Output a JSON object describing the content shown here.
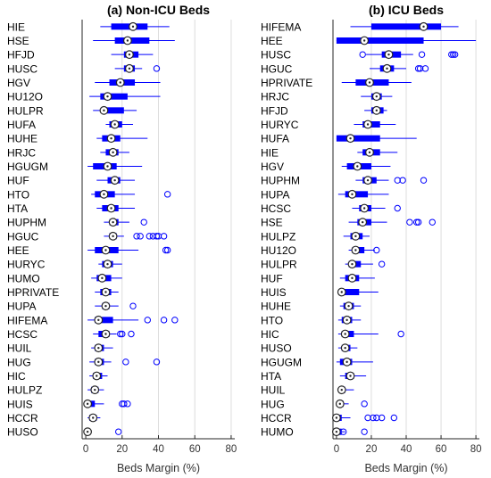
{
  "colors": {
    "box": "#0000ff",
    "grid": "#dddddd",
    "axis": "#262626",
    "text": "#000000"
  },
  "chart_data": [
    {
      "type": "box",
      "title": "(a) Non-ICU Beds",
      "xlabel": "Beds Margin (%)",
      "xlim": [
        -2,
        82
      ],
      "xticks": [
        0,
        20,
        40,
        60,
        80
      ],
      "grid": "vertical",
      "categories": [
        "HIE",
        "HSE",
        "HFJD",
        "HUSC",
        "HGV",
        "HU12O",
        "HULPR",
        "HUFA",
        "HUHE",
        "HRJC",
        "HGUGM",
        "HUF",
        "HTO",
        "HTA",
        "HUPHM",
        "HGUC",
        "HEE",
        "HURYC",
        "HUMO",
        "HPRIVATE",
        "HUPA",
        "HIFEMA",
        "HCSC",
        "HUIL",
        "HUG",
        "HIC",
        "HULPZ",
        "HUIS",
        "HCCR",
        "HUSO"
      ],
      "series": [
        {
          "whislo": 8,
          "q1": 14,
          "med": 26,
          "q3": 34,
          "whishi": 46,
          "fliers": []
        },
        {
          "whislo": 4,
          "q1": 16,
          "med": 23,
          "q3": 35,
          "whishi": 49,
          "fliers": []
        },
        {
          "whislo": 14,
          "q1": 21,
          "med": 24,
          "q3": 29,
          "whishi": 37,
          "fliers": []
        },
        {
          "whislo": 16,
          "q1": 21,
          "med": 24,
          "q3": 27,
          "whishi": 31,
          "fliers": [
            39
          ]
        },
        {
          "whislo": 5,
          "q1": 13,
          "med": 19,
          "q3": 27,
          "whishi": 41,
          "fliers": []
        },
        {
          "whislo": 2,
          "q1": 8,
          "med": 12,
          "q3": 23,
          "whishi": 41,
          "fliers": []
        },
        {
          "whislo": 4,
          "q1": 10,
          "med": 10,
          "q3": 21,
          "whishi": 28,
          "fliers": []
        },
        {
          "whislo": 11,
          "q1": 13,
          "med": 16,
          "q3": 20,
          "whishi": 26,
          "fliers": []
        },
        {
          "whislo": 6,
          "q1": 9,
          "med": 14,
          "q3": 19,
          "whishi": 34,
          "fliers": []
        },
        {
          "whislo": 8,
          "q1": 11,
          "med": 15,
          "q3": 18,
          "whishi": 24,
          "fliers": []
        },
        {
          "whislo": 1,
          "q1": 4,
          "med": 12,
          "q3": 17,
          "whishi": 31,
          "fliers": []
        },
        {
          "whislo": 6,
          "q1": 12,
          "med": 16,
          "q3": 19,
          "whishi": 27,
          "fliers": []
        },
        {
          "whislo": 3,
          "q1": 5,
          "med": 10,
          "q3": 16,
          "whishi": 27,
          "fliers": [
            45
          ]
        },
        {
          "whislo": 6,
          "q1": 9,
          "med": 14,
          "q3": 18,
          "whishi": 27,
          "fliers": []
        },
        {
          "whislo": 10,
          "q1": 13,
          "med": 15,
          "q3": 18,
          "whishi": 24,
          "fliers": [
            32
          ]
        },
        {
          "whislo": 10,
          "q1": 13,
          "med": 15,
          "q3": 17,
          "whishi": 21,
          "fliers": [
            28,
            30,
            35,
            37,
            39,
            40,
            43
          ]
        },
        {
          "whislo": 1,
          "q1": 5,
          "med": 11,
          "q3": 18,
          "whishi": 29,
          "fliers": [
            44,
            45
          ]
        },
        {
          "whislo": 7,
          "q1": 9,
          "med": 12,
          "q3": 15,
          "whishi": 20,
          "fliers": []
        },
        {
          "whislo": 3,
          "q1": 6,
          "med": 9,
          "q3": 14,
          "whishi": 20,
          "fliers": []
        },
        {
          "whislo": 5,
          "q1": 8,
          "med": 11,
          "q3": 14,
          "whishi": 18,
          "fliers": []
        },
        {
          "whislo": 5,
          "q1": 9,
          "med": 11,
          "q3": 13,
          "whishi": 18,
          "fliers": [
            26
          ]
        },
        {
          "whislo": 1,
          "q1": 5,
          "med": 7,
          "q3": 15,
          "whishi": 29,
          "fliers": [
            34,
            43,
            49
          ]
        },
        {
          "whislo": 4,
          "q1": 7,
          "med": 11,
          "q3": 13,
          "whishi": 17,
          "fliers": [
            19,
            20,
            25
          ]
        },
        {
          "whislo": 3,
          "q1": 5,
          "med": 7,
          "q3": 10,
          "whishi": 15,
          "fliers": []
        },
        {
          "whislo": 2,
          "q1": 5,
          "med": 7,
          "q3": 10,
          "whishi": 14,
          "fliers": [
            22,
            39
          ]
        },
        {
          "whislo": 2,
          "q1": 4,
          "med": 6,
          "q3": 9,
          "whishi": 12,
          "fliers": []
        },
        {
          "whislo": 1,
          "q1": 3,
          "med": 5,
          "q3": 7,
          "whishi": 10,
          "fliers": []
        },
        {
          "whislo": 0,
          "q1": 1,
          "med": 1,
          "q3": 5,
          "whishi": 10,
          "fliers": [
            20,
            21,
            23
          ]
        },
        {
          "whislo": 1,
          "q1": 2,
          "med": 4,
          "q3": 6,
          "whishi": 8,
          "fliers": []
        },
        {
          "whislo": 0,
          "q1": 0,
          "med": 1,
          "q3": 1,
          "whishi": 2,
          "fliers": [
            18
          ]
        }
      ]
    },
    {
      "type": "box",
      "title": "(b) ICU Beds",
      "xlabel": "Beds Margin (%)",
      "xlim": [
        -2,
        82
      ],
      "xticks": [
        0,
        20,
        40,
        60,
        80
      ],
      "grid": "vertical",
      "categories": [
        "HIFEMA",
        "HEE",
        "HUSC",
        "HGUC",
        "HPRIVATE",
        "HRJC",
        "HFJD",
        "HURYC",
        "HUFA",
        "HIE",
        "HGV",
        "HUPHM",
        "HUPA",
        "HCSC",
        "HSE",
        "HULPZ",
        "HU12O",
        "HULPR",
        "HUF",
        "HUIS",
        "HUHE",
        "HTO",
        "HIC",
        "HUSO",
        "HGUGM",
        "HTA",
        "HUIL",
        "HUG",
        "HCCR",
        "HUMO"
      ],
      "series": [
        {
          "whislo": 8,
          "q1": 20,
          "med": 50,
          "q3": 60,
          "whishi": 70,
          "fliers": []
        },
        {
          "whislo": 0,
          "q1": 0,
          "med": 16,
          "q3": 50,
          "whishi": 80,
          "fliers": []
        },
        {
          "whislo": 17,
          "q1": 26,
          "med": 30,
          "q3": 37,
          "whishi": 44,
          "fliers": [
            15,
            49,
            66,
            67,
            68
          ]
        },
        {
          "whislo": 19,
          "q1": 25,
          "med": 29,
          "q3": 33,
          "whishi": 40,
          "fliers": [
            47,
            48,
            51
          ]
        },
        {
          "whislo": 3,
          "q1": 11,
          "med": 19,
          "q3": 30,
          "whishi": 43,
          "fliers": []
        },
        {
          "whislo": 14,
          "q1": 20,
          "med": 23,
          "q3": 26,
          "whishi": 32,
          "fliers": []
        },
        {
          "whislo": 16,
          "q1": 20,
          "med": 23,
          "q3": 27,
          "whishi": 29,
          "fliers": []
        },
        {
          "whislo": 10,
          "q1": 15,
          "med": 18,
          "q3": 25,
          "whishi": 34,
          "fliers": []
        },
        {
          "whislo": 0,
          "q1": 0,
          "med": 8,
          "q3": 25,
          "whishi": 46,
          "fliers": []
        },
        {
          "whislo": 12,
          "q1": 15,
          "med": 19,
          "q3": 25,
          "whishi": 35,
          "fliers": []
        },
        {
          "whislo": 3,
          "q1": 6,
          "med": 12,
          "q3": 20,
          "whishi": 31,
          "fliers": []
        },
        {
          "whislo": 11,
          "q1": 15,
          "med": 18,
          "q3": 23,
          "whishi": 30,
          "fliers": [
            35,
            38,
            50
          ]
        },
        {
          "whislo": 1,
          "q1": 5,
          "med": 9,
          "q3": 18,
          "whishi": 30,
          "fliers": []
        },
        {
          "whislo": 9,
          "q1": 13,
          "med": 16,
          "q3": 20,
          "whishi": 28,
          "fliers": [
            35
          ]
        },
        {
          "whislo": 7,
          "q1": 12,
          "med": 15,
          "q3": 20,
          "whishi": 29,
          "fliers": [
            42,
            46,
            47,
            55
          ]
        },
        {
          "whislo": 4,
          "q1": 8,
          "med": 11,
          "q3": 15,
          "whishi": 19,
          "fliers": []
        },
        {
          "whislo": 7,
          "q1": 9,
          "med": 11,
          "q3": 16,
          "whishi": 22,
          "fliers": [
            23
          ]
        },
        {
          "whislo": 5,
          "q1": 7,
          "med": 9,
          "q3": 14,
          "whishi": 21,
          "fliers": [
            26
          ]
        },
        {
          "whislo": 2,
          "q1": 5,
          "med": 9,
          "q3": 13,
          "whishi": 22,
          "fliers": []
        },
        {
          "whislo": 1,
          "q1": 3,
          "med": 3,
          "q3": 13,
          "whishi": 24,
          "fliers": []
        },
        {
          "whislo": 2,
          "q1": 4,
          "med": 7,
          "q3": 10,
          "whishi": 14,
          "fliers": []
        },
        {
          "whislo": 1,
          "q1": 3,
          "med": 6,
          "q3": 9,
          "whishi": 14,
          "fliers": []
        },
        {
          "whislo": 1,
          "q1": 3,
          "med": 5,
          "q3": 10,
          "whishi": 24,
          "fliers": [
            37
          ]
        },
        {
          "whislo": 1,
          "q1": 3,
          "med": 5,
          "q3": 8,
          "whishi": 12,
          "fliers": []
        },
        {
          "whislo": 0,
          "q1": 2,
          "med": 6,
          "q3": 9,
          "whishi": 21,
          "fliers": []
        },
        {
          "whislo": 2,
          "q1": 5,
          "med": 8,
          "q3": 10,
          "whishi": 17,
          "fliers": []
        },
        {
          "whislo": 1,
          "q1": 2,
          "med": 3,
          "q3": 5,
          "whishi": 10,
          "fliers": []
        },
        {
          "whislo": 0,
          "q1": 1,
          "med": 2,
          "q3": 4,
          "whishi": 7,
          "fliers": [
            16
          ]
        },
        {
          "whislo": 0,
          "q1": 0,
          "med": 0,
          "q3": 3,
          "whishi": 8,
          "fliers": [
            18,
            21,
            23,
            26,
            33
          ]
        },
        {
          "whislo": 0,
          "q1": 0,
          "med": 0,
          "q3": 3,
          "whishi": 5,
          "fliers": [
            4,
            16
          ]
        }
      ]
    }
  ]
}
